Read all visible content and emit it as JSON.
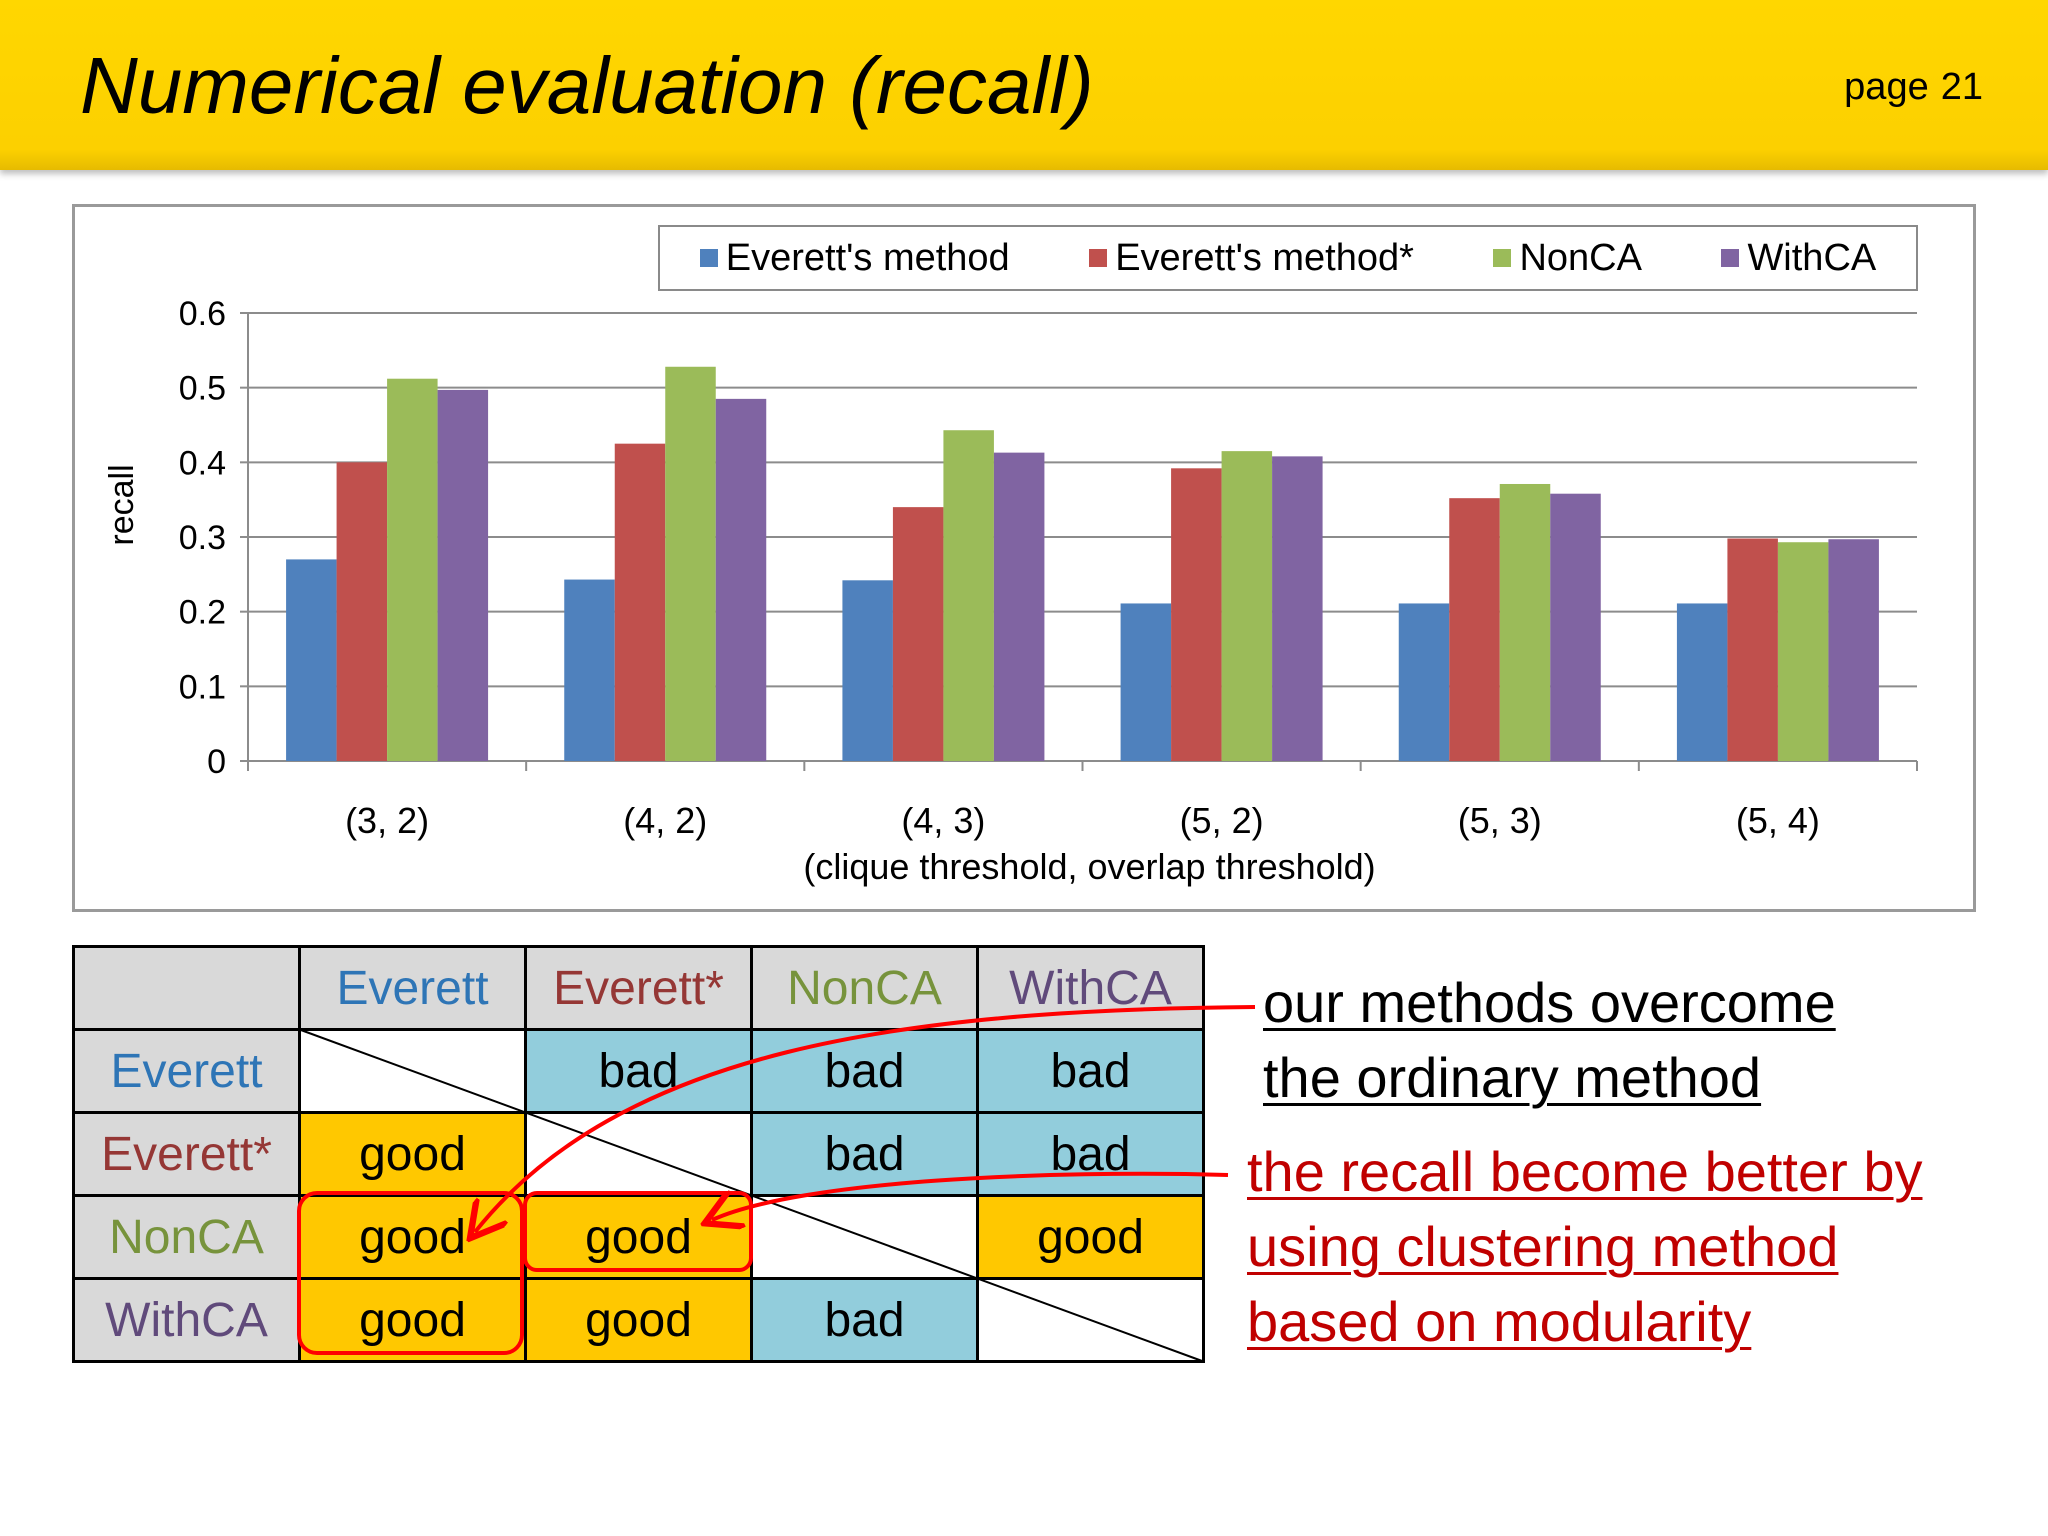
{
  "header": {
    "title": "Numerical evaluation (recall)",
    "page_label": "page",
    "page_number": "21"
  },
  "colors": {
    "header_bg": "#fcd000",
    "everett": "#4f81bd",
    "everett_star": "#c0504d",
    "nonca": "#9bbb59",
    "withca": "#8064a2",
    "good": "#ffc800",
    "bad": "#92cddc",
    "arrow": "#ff0000",
    "red_note": "#c00000"
  },
  "chart_data": {
    "type": "bar",
    "categories": [
      "(3, 2)",
      "(4, 2)",
      "(4, 3)",
      "(5, 2)",
      "(5, 3)",
      "(5, 4)"
    ],
    "series": [
      {
        "name": "Everett's method",
        "color": "#4f81bd",
        "values": [
          0.27,
          0.243,
          0.242,
          0.211,
          0.211,
          0.211
        ]
      },
      {
        "name": "Everett's method*",
        "color": "#c0504d",
        "values": [
          0.4,
          0.425,
          0.34,
          0.392,
          0.352,
          0.298
        ]
      },
      {
        "name": "NonCA",
        "color": "#9bbb59",
        "values": [
          0.512,
          0.528,
          0.443,
          0.415,
          0.371,
          0.293
        ]
      },
      {
        "name": "WithCA",
        "color": "#8064a2",
        "values": [
          0.497,
          0.485,
          0.413,
          0.408,
          0.358,
          0.297
        ]
      }
    ],
    "xlabel": "(clique threshold, overlap threshold)",
    "ylabel": "recall",
    "ylim": [
      0,
      0.6
    ],
    "yticks": [
      "0",
      "0.1",
      "0.2",
      "0.3",
      "0.4",
      "0.5",
      "0.6"
    ],
    "grid": true,
    "legend_position": "top"
  },
  "matrix": {
    "columns": [
      {
        "label": "Everett",
        "color": "#2e75b6"
      },
      {
        "label": "Everett*",
        "color": "#953735"
      },
      {
        "label": "NonCA",
        "color": "#77933c"
      },
      {
        "label": "WithCA",
        "color": "#604a7b"
      }
    ],
    "rows": [
      {
        "label": "Everett",
        "color": "#2e75b6",
        "cells": [
          "",
          "bad",
          "bad",
          "bad"
        ]
      },
      {
        "label": "Everett*",
        "color": "#953735",
        "cells": [
          "good",
          "",
          "bad",
          "bad"
        ]
      },
      {
        "label": "NonCA",
        "color": "#77933c",
        "cells": [
          "good",
          "good",
          "",
          "good"
        ]
      },
      {
        "label": "WithCA",
        "color": "#604a7b",
        "cells": [
          "good",
          "good",
          "bad",
          ""
        ]
      }
    ]
  },
  "annotations": {
    "black_note_line1": "our methods overcome",
    "black_note_line2": "the ordinary method",
    "red_note_line1": "the recall become better by",
    "red_note_line2": "using clustering method",
    "red_note_line3": "based on modularity"
  }
}
